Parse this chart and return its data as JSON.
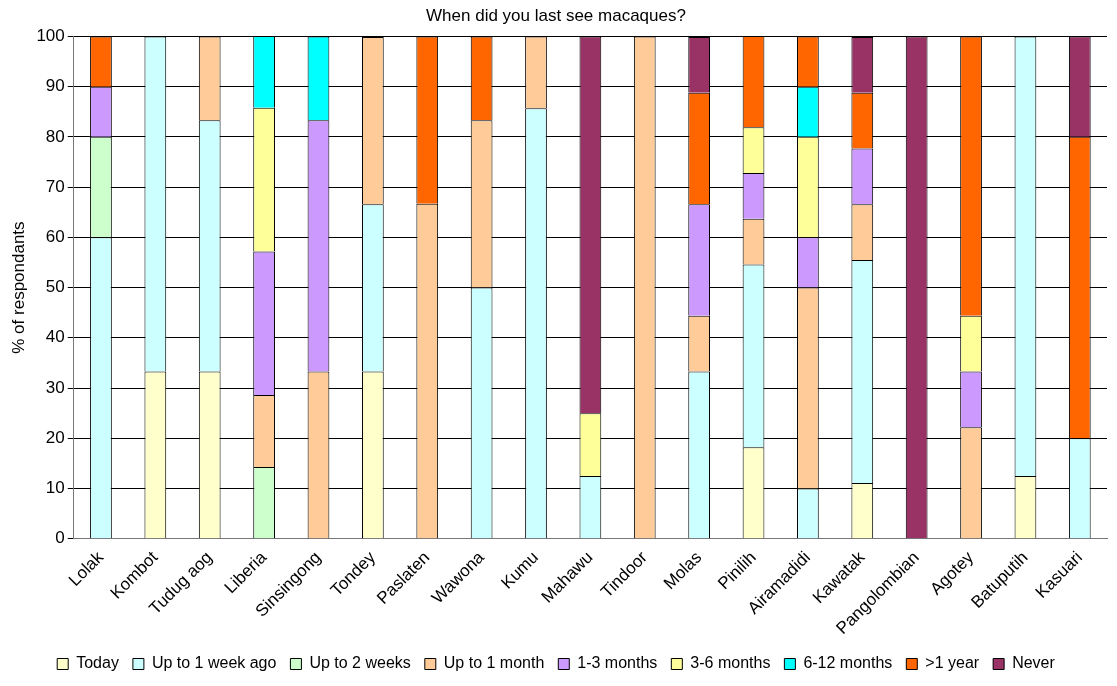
{
  "chart_data": {
    "type": "bar",
    "stacked": true,
    "title": "When did you last see macaques?",
    "ylabel": "% of respondants",
    "categories": [
      "Lolak",
      "Kombot",
      "Tudug aog",
      "Liberia",
      "Sinsingong",
      "Tondey",
      "Paslaten",
      "Wawona",
      "Kumu",
      "Mahawu",
      "Tindoor",
      "Molas",
      "Pinilih",
      "Airamadidi",
      "Kawatak",
      "Pangolombian",
      "Agotey",
      "Batuputih",
      "Kasuari"
    ],
    "series": [
      {
        "name": "Today",
        "color": "#ffffcc",
        "values": [
          0,
          33.3,
          33.3,
          0,
          0,
          33.3,
          0,
          0,
          0,
          0,
          0,
          0,
          18.2,
          0,
          11.1,
          0,
          0,
          12.5,
          0
        ]
      },
      {
        "name": "Up to 1 week ago",
        "color": "#ccffff",
        "values": [
          60,
          66.7,
          50,
          0,
          0,
          33.3,
          0,
          50,
          85.7,
          12.5,
          0,
          33.3,
          36.4,
          10,
          44.4,
          0,
          0,
          87.5,
          20
        ]
      },
      {
        "name": "Up to 2 weeks",
        "color": "#ccffcc",
        "values": [
          20,
          0,
          0,
          14.3,
          0,
          0,
          0,
          0,
          0,
          0,
          0,
          0,
          0,
          0,
          0,
          0,
          0,
          0,
          0
        ]
      },
      {
        "name": "Up to 1 month",
        "color": "#ffcc99",
        "values": [
          0,
          0,
          16.7,
          14.3,
          33.3,
          33.3,
          66.7,
          33.3,
          14.3,
          0,
          100,
          11.1,
          9.1,
          40,
          11.1,
          0,
          22.2,
          0,
          0
        ]
      },
      {
        "name": "1-3 months",
        "color": "#cc99ff",
        "values": [
          10,
          0,
          0,
          28.6,
          50,
          0,
          0,
          0,
          0,
          0,
          0,
          22.2,
          9.1,
          10,
          11.1,
          0,
          11.1,
          0,
          0
        ]
      },
      {
        "name": "3-6 months",
        "color": "#ffff99",
        "values": [
          0,
          0,
          0,
          28.6,
          0,
          0,
          0,
          0,
          0,
          12.5,
          0,
          0,
          9.1,
          20,
          0,
          0,
          11.1,
          0,
          0
        ]
      },
      {
        "name": "6-12 months",
        "color": "#00ffff",
        "values": [
          0,
          0,
          0,
          14.3,
          16.7,
          0,
          0,
          0,
          0,
          0,
          0,
          0,
          0,
          10,
          0,
          0,
          0,
          0,
          0
        ]
      },
      {
        "name": ">1 year",
        "color": "#ff6600",
        "values": [
          10,
          0,
          0,
          0,
          0,
          0,
          33.3,
          16.7,
          0,
          0,
          0,
          22.2,
          18.2,
          10,
          11.1,
          0,
          55.6,
          0,
          60
        ]
      },
      {
        "name": "Never",
        "color": "#993366",
        "values": [
          0,
          0,
          0,
          0,
          0,
          0,
          0,
          0,
          0,
          75,
          0,
          11.1,
          0,
          0,
          11.1,
          100,
          0,
          0,
          20
        ]
      }
    ],
    "ylim": [
      0,
      100
    ],
    "yticks": [
      0,
      10,
      20,
      30,
      40,
      50,
      60,
      70,
      80,
      90,
      100
    ],
    "grid": "y",
    "legend": "bottom"
  }
}
